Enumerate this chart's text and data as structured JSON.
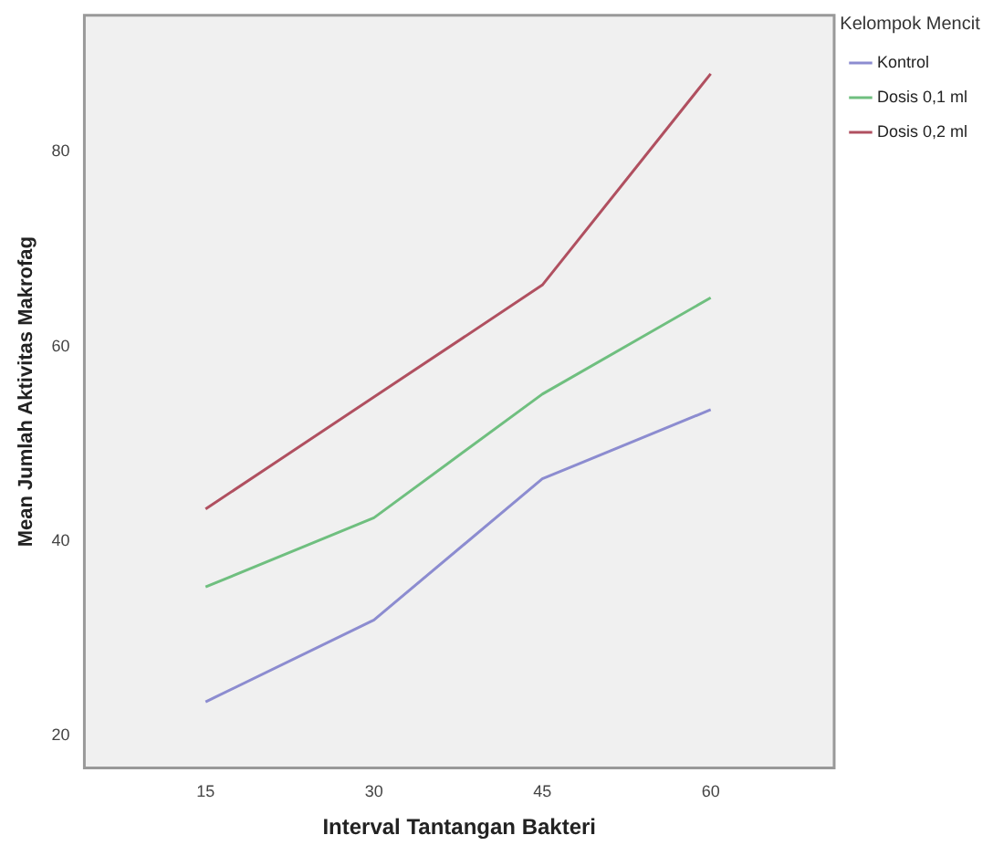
{
  "chart_data": {
    "type": "line",
    "xlabel": "Interval Tantangan Bakteri",
    "ylabel": "Mean Jumlah Aktivitas Makrofag",
    "legend_title": "Kelompok Mencit",
    "legend": "top right",
    "grid": false,
    "marker": "none",
    "line_style": "solid",
    "x": [
      15,
      30,
      45,
      60
    ],
    "xlim": [
      4.2,
      71
    ],
    "xticks": [
      15,
      30,
      45,
      60
    ],
    "ylim": [
      16.7,
      94
    ],
    "yticks": [
      20,
      40,
      60,
      80
    ],
    "series": [
      {
        "name": "Kontrol",
        "color": "#8c8cd0",
        "values": [
          23.5,
          31.9,
          46.4,
          53.5
        ]
      },
      {
        "name": "Dosis 0,1 ml",
        "color": "#6fbf7f",
        "values": [
          35.3,
          42.4,
          55.1,
          65
        ]
      },
      {
        "name": "Dosis 0,2 ml",
        "color": "#b05060",
        "values": [
          43.3,
          54.8,
          66.3,
          88
        ]
      }
    ]
  }
}
